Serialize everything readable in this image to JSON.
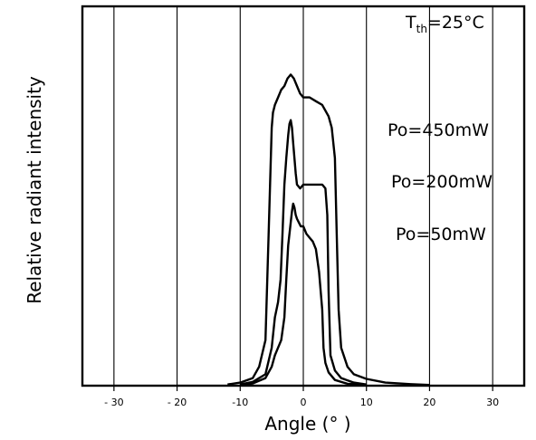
{
  "chart_data": {
    "type": "line",
    "title": "",
    "xlabel": "Angle (° )",
    "ylabel": "Relative radiant intensity",
    "xlim": [
      -35,
      35
    ],
    "ylim": [
      0,
      1.0
    ],
    "xticks": [
      -30,
      -20,
      -10,
      0,
      10,
      20,
      30
    ],
    "xtick_labels": [
      "- 30",
      "- 20",
      "-10",
      "0",
      "10",
      "20",
      "30"
    ],
    "grid": "vertical",
    "annotations": [
      {
        "main": "T",
        "sub": "th",
        "rest": "=25°C"
      },
      {
        "main": "Po=450mW"
      },
      {
        "main": "Po=200mW"
      },
      {
        "main": "Po=50mW"
      }
    ],
    "series": [
      {
        "x": [
          -12,
          -10,
          -8,
          -7,
          -6,
          -5.5,
          -5,
          -4.8,
          -4.5,
          -4,
          -3.5,
          -3,
          -2.5,
          -2,
          -1.5,
          -1,
          -0.5,
          0,
          1,
          2,
          3,
          4,
          4.5,
          5,
          5.3,
          5.6,
          6,
          7,
          8,
          10,
          13,
          17,
          20
        ],
        "y": [
          0.003,
          0.008,
          0.02,
          0.05,
          0.12,
          0.4,
          0.68,
          0.72,
          0.74,
          0.76,
          0.78,
          0.79,
          0.81,
          0.82,
          0.81,
          0.79,
          0.77,
          0.76,
          0.76,
          0.75,
          0.74,
          0.71,
          0.68,
          0.6,
          0.4,
          0.2,
          0.1,
          0.05,
          0.03,
          0.018,
          0.008,
          0.004,
          0.002
        ]
      },
      {
        "x": [
          -10,
          -8,
          -6,
          -5,
          -4.5,
          -4,
          -3.6,
          -3.3,
          -3,
          -2.7,
          -2.4,
          -2.2,
          -2,
          -1.8,
          -1.6,
          -1.4,
          -1.2,
          -1,
          -0.5,
          0,
          1,
          2,
          3,
          3.5,
          3.8,
          4,
          4.3,
          5,
          6,
          8,
          10
        ],
        "y": [
          0.003,
          0.01,
          0.03,
          0.1,
          0.18,
          0.22,
          0.28,
          0.4,
          0.53,
          0.6,
          0.66,
          0.69,
          0.7,
          0.68,
          0.64,
          0.6,
          0.56,
          0.53,
          0.52,
          0.53,
          0.53,
          0.53,
          0.53,
          0.52,
          0.45,
          0.25,
          0.08,
          0.04,
          0.02,
          0.008,
          0.003
        ]
      },
      {
        "x": [
          -10,
          -8,
          -6,
          -5,
          -4.5,
          -4,
          -3.5,
          -3,
          -2.7,
          -2.4,
          -2,
          -1.8,
          -1.6,
          -1.4,
          -1.2,
          -1,
          -0.7,
          -0.4,
          0,
          0.5,
          1,
          1.5,
          2,
          2.5,
          3,
          3.2,
          3.5,
          4,
          5,
          7,
          10
        ],
        "y": [
          0.002,
          0.006,
          0.02,
          0.05,
          0.08,
          0.1,
          0.12,
          0.18,
          0.28,
          0.37,
          0.43,
          0.46,
          0.48,
          0.47,
          0.45,
          0.44,
          0.43,
          0.42,
          0.42,
          0.4,
          0.39,
          0.38,
          0.36,
          0.3,
          0.2,
          0.1,
          0.06,
          0.035,
          0.015,
          0.005,
          0.002
        ]
      }
    ]
  }
}
